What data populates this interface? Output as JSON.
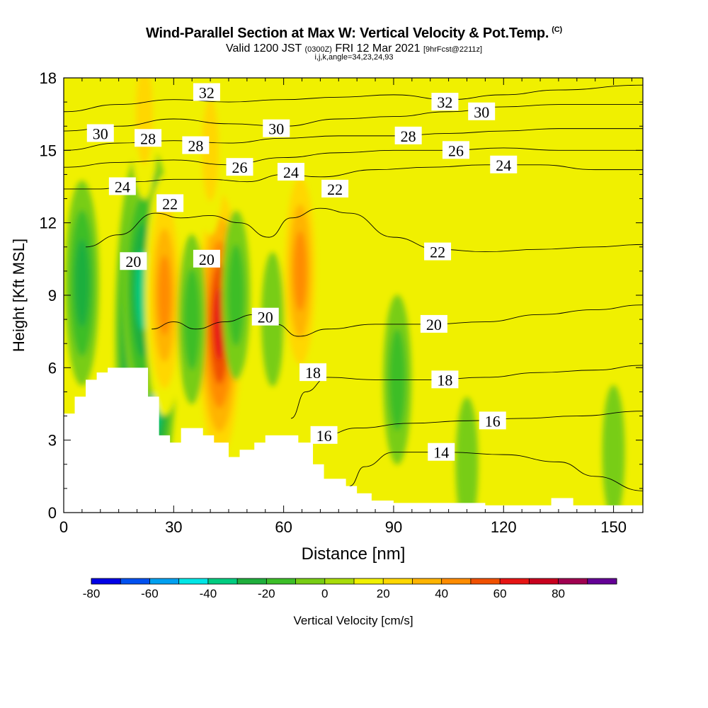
{
  "header": {
    "title": "Wind-Parallel Section at Max W: Vertical Velocity & Pot.Temp.",
    "title_unit": "(C)",
    "valid_prefix": "Valid 1200 JST",
    "valid_utc": "(0300Z)",
    "valid_date": "FRI 12 Mar 2021",
    "forecast": "[9hrFcst@2211z]",
    "indices": "i,j,k,angle=34,23,24,93"
  },
  "chart_data": {
    "type": "heatmap",
    "title": "Wind-Parallel Section at Max W: Vertical Velocity & Pot.Temp.",
    "xlabel": "Distance [nm]",
    "ylabel": "Height [Kft MSL]",
    "xlim": [
      0,
      158
    ],
    "ylim": [
      0,
      18
    ],
    "x_ticks": [
      0,
      30,
      60,
      90,
      120,
      150
    ],
    "y_ticks": [
      0,
      3,
      6,
      9,
      12,
      15,
      18
    ],
    "colorbar": {
      "label": "Vertical Velocity [cm/s]",
      "ticks": [
        -80,
        -60,
        -40,
        -20,
        0,
        20,
        40,
        60,
        80
      ],
      "levels": [
        -80,
        -70,
        -60,
        -50,
        -40,
        -30,
        -20,
        -10,
        0,
        10,
        20,
        30,
        40,
        50,
        60,
        70,
        80,
        90
      ],
      "colors": [
        "#0000e6",
        "#0050f0",
        "#00a0f0",
        "#00e6e6",
        "#00cc80",
        "#1faf3c",
        "#3cbe28",
        "#78cd14",
        "#a8dc0a",
        "#f0f000",
        "#ffd700",
        "#ffb400",
        "#ff8c00",
        "#f05000",
        "#e61414",
        "#c8001e",
        "#a00050",
        "#640096"
      ]
    },
    "terrain_kft": [
      [
        0,
        4.1
      ],
      [
        3,
        4.1
      ],
      [
        3,
        4.8
      ],
      [
        6,
        4.8
      ],
      [
        6,
        5.5
      ],
      [
        9,
        5.5
      ],
      [
        9,
        5.8
      ],
      [
        12,
        5.8
      ],
      [
        12,
        6.0
      ],
      [
        23,
        6.0
      ],
      [
        23,
        4.8
      ],
      [
        26,
        4.8
      ],
      [
        26,
        3.2
      ],
      [
        29,
        3.2
      ],
      [
        29,
        2.9
      ],
      [
        32,
        2.9
      ],
      [
        32,
        3.5
      ],
      [
        38,
        3.5
      ],
      [
        38,
        3.2
      ],
      [
        41,
        3.2
      ],
      [
        41,
        2.9
      ],
      [
        45,
        2.9
      ],
      [
        45,
        2.3
      ],
      [
        48,
        2.3
      ],
      [
        48,
        2.6
      ],
      [
        52,
        2.6
      ],
      [
        52,
        2.9
      ],
      [
        55,
        2.9
      ],
      [
        55,
        3.2
      ],
      [
        64,
        3.2
      ],
      [
        64,
        2.9
      ],
      [
        68,
        2.9
      ],
      [
        68,
        2.0
      ],
      [
        71,
        2.0
      ],
      [
        71,
        1.4
      ],
      [
        77,
        1.4
      ],
      [
        77,
        1.1
      ],
      [
        80,
        1.1
      ],
      [
        80,
        0.8
      ],
      [
        84,
        0.8
      ],
      [
        84,
        0.5
      ],
      [
        90,
        0.5
      ],
      [
        90,
        0.4
      ],
      [
        115,
        0.4
      ],
      [
        115,
        0.3
      ],
      [
        133,
        0.3
      ],
      [
        133,
        0.6
      ],
      [
        139,
        0.6
      ],
      [
        139,
        0.3
      ],
      [
        158,
        0.3
      ]
    ],
    "velocity_features": [
      {
        "x": 22.5,
        "y": 7.5,
        "value": -80
      },
      {
        "x": 21.5,
        "y": 9.2,
        "value": -45
      },
      {
        "x": 5,
        "y": 9.5,
        "value": -35
      },
      {
        "x": 27.5,
        "y": 9.0,
        "value": 55
      },
      {
        "x": 42.5,
        "y": 7.8,
        "value": 70
      },
      {
        "x": 64.5,
        "y": 10.0,
        "value": 55
      },
      {
        "x": 22,
        "y": 16.5,
        "value": 35
      },
      {
        "x": 40,
        "y": 15.0,
        "value": 30
      },
      {
        "x": 47,
        "y": 9.0,
        "value": -20
      },
      {
        "x": 35,
        "y": 8.0,
        "value": -20
      },
      {
        "x": 57,
        "y": 8.0,
        "value": -15
      },
      {
        "x": 91,
        "y": 5.5,
        "value": -20
      },
      {
        "x": 110,
        "y": 2.0,
        "value": -10
      },
      {
        "x": 150,
        "y": 2.5,
        "value": -15
      }
    ],
    "contour_labels": [
      {
        "text": "32",
        "x": 39,
        "y": 17.4
      },
      {
        "text": "30",
        "x": 10,
        "y": 15.7
      },
      {
        "text": "28",
        "x": 23,
        "y": 15.5
      },
      {
        "text": "28",
        "x": 36,
        "y": 15.2
      },
      {
        "text": "30",
        "x": 58,
        "y": 15.9
      },
      {
        "text": "26",
        "x": 48,
        "y": 14.3
      },
      {
        "text": "24",
        "x": 62,
        "y": 14.1
      },
      {
        "text": "24",
        "x": 16,
        "y": 13.5
      },
      {
        "text": "22",
        "x": 29,
        "y": 12.8
      },
      {
        "text": "22",
        "x": 74,
        "y": 13.4
      },
      {
        "text": "20",
        "x": 19,
        "y": 10.4
      },
      {
        "text": "20",
        "x": 39,
        "y": 10.5
      },
      {
        "text": "20",
        "x": 55,
        "y": 8.1
      },
      {
        "text": "18",
        "x": 68,
        "y": 5.8
      },
      {
        "text": "16",
        "x": 71,
        "y": 3.2
      },
      {
        "text": "32",
        "x": 104,
        "y": 17.0
      },
      {
        "text": "30",
        "x": 114,
        "y": 16.6
      },
      {
        "text": "28",
        "x": 94,
        "y": 15.6
      },
      {
        "text": "26",
        "x": 107,
        "y": 15.0
      },
      {
        "text": "24",
        "x": 120,
        "y": 14.4
      },
      {
        "text": "22",
        "x": 102,
        "y": 10.8
      },
      {
        "text": "20",
        "x": 101,
        "y": 7.8
      },
      {
        "text": "18",
        "x": 104,
        "y": 5.5
      },
      {
        "text": "16",
        "x": 117,
        "y": 3.8
      },
      {
        "text": "14",
        "x": 103,
        "y": 2.5
      }
    ],
    "isentropes": [
      {
        "value": 14,
        "points": [
          [
            78,
            1.1
          ],
          [
            82,
            1.9
          ],
          [
            90,
            2.5
          ],
          [
            105,
            2.5
          ],
          [
            120,
            2.4
          ],
          [
            135,
            2.1
          ],
          [
            145,
            1.5
          ],
          [
            158,
            0.9
          ]
        ]
      },
      {
        "value": 16,
        "points": [
          [
            71,
            3.2
          ],
          [
            80,
            3.5
          ],
          [
            95,
            3.7
          ],
          [
            110,
            3.8
          ],
          [
            125,
            3.9
          ],
          [
            140,
            4.0
          ],
          [
            158,
            4.2
          ]
        ]
      },
      {
        "value": 18,
        "points": [
          [
            62,
            3.9
          ],
          [
            66,
            5.0
          ],
          [
            72,
            5.6
          ],
          [
            85,
            5.5
          ],
          [
            100,
            5.5
          ],
          [
            115,
            5.6
          ],
          [
            130,
            5.8
          ],
          [
            145,
            5.9
          ],
          [
            158,
            6.1
          ]
        ]
      },
      {
        "value": 20,
        "points": [
          [
            24,
            7.6
          ],
          [
            30,
            7.9
          ],
          [
            36,
            7.6
          ],
          [
            44,
            7.9
          ],
          [
            52,
            8.2
          ],
          [
            58,
            7.8
          ],
          [
            64,
            7.3
          ],
          [
            72,
            7.6
          ],
          [
            85,
            7.8
          ],
          [
            100,
            7.8
          ],
          [
            115,
            7.9
          ],
          [
            130,
            8.2
          ],
          [
            145,
            8.4
          ],
          [
            158,
            8.6
          ]
        ]
      },
      {
        "value": 22,
        "points": [
          [
            6,
            11.0
          ],
          [
            15,
            11.5
          ],
          [
            25,
            12.4
          ],
          [
            32,
            12.2
          ],
          [
            40,
            12.3
          ],
          [
            48,
            12.0
          ],
          [
            56,
            11.4
          ],
          [
            62,
            12.2
          ],
          [
            70,
            12.6
          ],
          [
            78,
            12.4
          ],
          [
            90,
            11.4
          ],
          [
            102,
            10.9
          ],
          [
            115,
            10.8
          ],
          [
            130,
            10.9
          ],
          [
            145,
            11.0
          ],
          [
            158,
            11.1
          ]
        ]
      },
      {
        "value": 24,
        "points": [
          [
            0,
            13.4
          ],
          [
            10,
            13.4
          ],
          [
            20,
            13.7
          ],
          [
            30,
            13.8
          ],
          [
            40,
            13.8
          ],
          [
            50,
            13.7
          ],
          [
            60,
            14.0
          ],
          [
            70,
            13.9
          ],
          [
            85,
            14.2
          ],
          [
            100,
            14.3
          ],
          [
            115,
            14.4
          ],
          [
            130,
            14.4
          ],
          [
            145,
            14.2
          ],
          [
            158,
            14.2
          ]
        ]
      },
      {
        "value": 26,
        "points": [
          [
            0,
            14.3
          ],
          [
            15,
            14.5
          ],
          [
            30,
            14.6
          ],
          [
            45,
            14.4
          ],
          [
            60,
            14.7
          ],
          [
            75,
            14.9
          ],
          [
            90,
            15.0
          ],
          [
            105,
            15.0
          ],
          [
            120,
            15.1
          ],
          [
            135,
            15.0
          ],
          [
            158,
            15.0
          ]
        ]
      },
      {
        "value": 28,
        "points": [
          [
            0,
            15.0
          ],
          [
            15,
            15.3
          ],
          [
            30,
            15.4
          ],
          [
            45,
            15.3
          ],
          [
            60,
            15.5
          ],
          [
            75,
            15.6
          ],
          [
            90,
            15.6
          ],
          [
            105,
            15.7
          ],
          [
            120,
            15.8
          ],
          [
            135,
            15.9
          ],
          [
            158,
            15.9
          ]
        ]
      },
      {
        "value": 30,
        "points": [
          [
            0,
            15.8
          ],
          [
            15,
            16.0
          ],
          [
            30,
            16.3
          ],
          [
            45,
            16.1
          ],
          [
            60,
            16.0
          ],
          [
            75,
            16.3
          ],
          [
            90,
            16.4
          ],
          [
            105,
            16.6
          ],
          [
            120,
            16.8
          ],
          [
            135,
            16.9
          ],
          [
            158,
            16.9
          ]
        ]
      },
      {
        "value": 32,
        "points": [
          [
            0,
            16.6
          ],
          [
            15,
            16.9
          ],
          [
            30,
            17.1
          ],
          [
            45,
            17.0
          ],
          [
            60,
            17.1
          ],
          [
            75,
            17.2
          ],
          [
            90,
            17.3
          ],
          [
            105,
            17.1
          ],
          [
            120,
            17.3
          ],
          [
            135,
            17.5
          ],
          [
            158,
            17.7
          ]
        ]
      }
    ]
  }
}
